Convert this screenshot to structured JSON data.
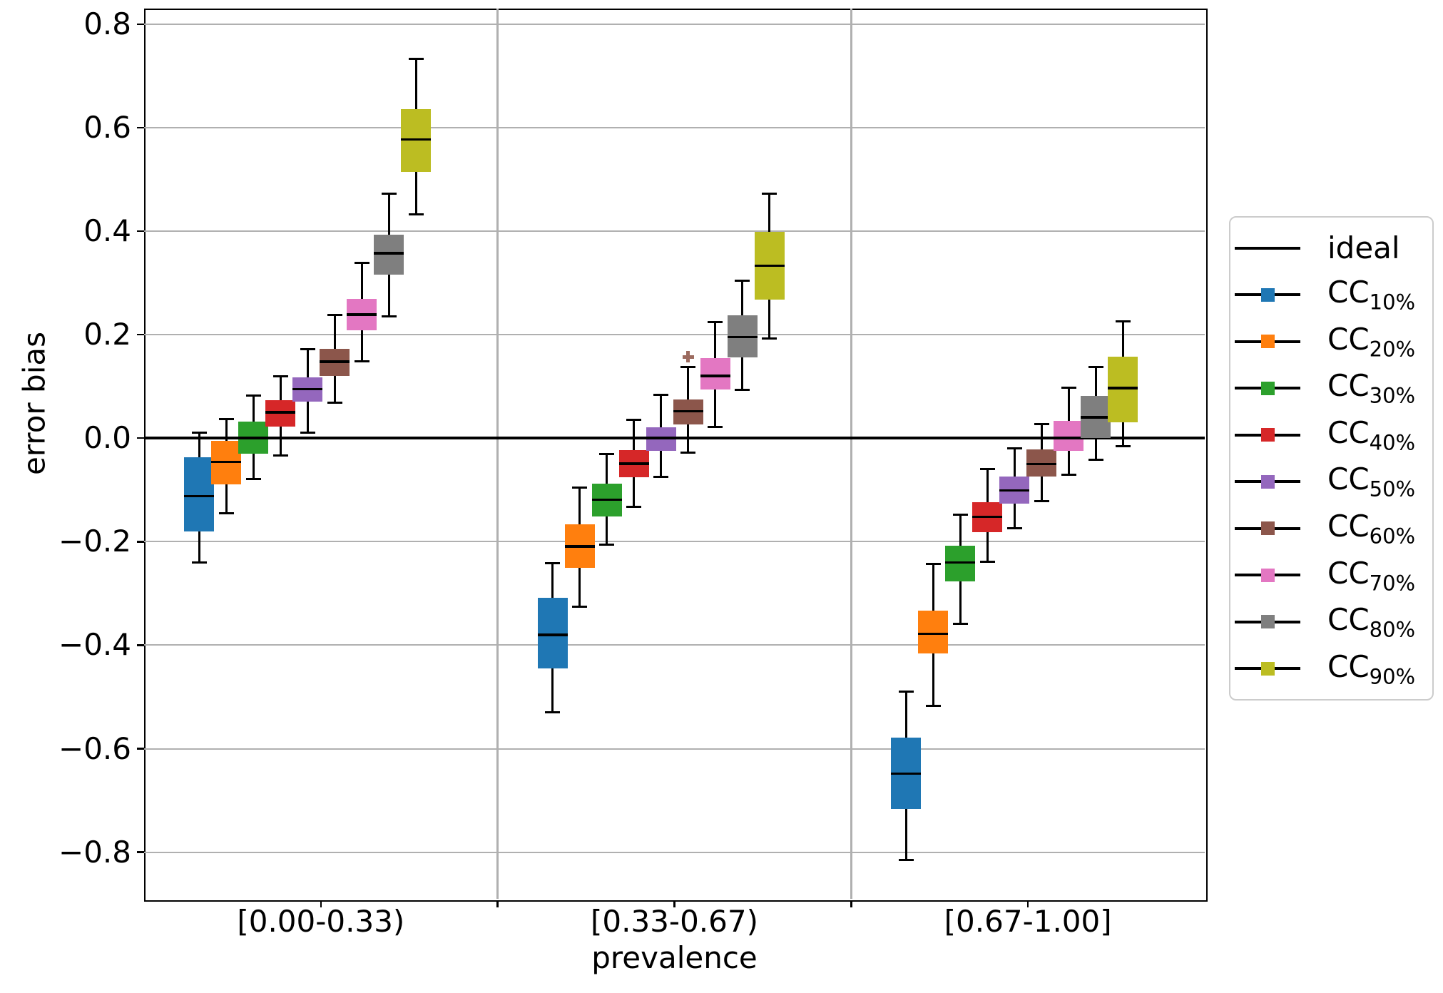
{
  "y_axis": {
    "label": "error bias"
  },
  "x_axis": {
    "label": "prevalence"
  },
  "chart_data": {
    "type": "boxplot",
    "title": "",
    "xlabel": "prevalence",
    "ylabel": "error bias",
    "ylim": [
      -0.89,
      0.83
    ],
    "yticks": [
      0.8,
      0.6,
      0.4,
      0.2,
      0.0,
      -0.2,
      -0.4,
      -0.6,
      -0.8
    ],
    "ytick_labels": [
      "0.8",
      "0.6",
      "0.4",
      "0.2",
      "0.0",
      "−0.2",
      "−0.4",
      "−0.6",
      "−0.8"
    ],
    "grid": true,
    "legend_position": "right",
    "gridline_color": "#b0b0b0",
    "reference_line": {
      "label": "ideal",
      "y": 0.0,
      "color": "#000000"
    },
    "groups": [
      "[0.00-0.33)",
      "[0.33-0.67)",
      "[0.67-1.00]"
    ],
    "flier_color": "#9c6b5f",
    "series": [
      {
        "name": "CC",
        "sub": "10%",
        "color": "#1f77b4",
        "boxes": [
          {
            "whislo": -0.24,
            "q1": -0.18,
            "med": -0.112,
            "q3": -0.037,
            "whishi": 0.01,
            "fliers": []
          },
          {
            "whislo": -0.529,
            "q1": -0.445,
            "med": -0.38,
            "q3": -0.309,
            "whishi": -0.241,
            "fliers": []
          },
          {
            "whislo": -0.815,
            "q1": -0.716,
            "med": -0.648,
            "q3": -0.578,
            "whishi": -0.49,
            "fliers": []
          }
        ]
      },
      {
        "name": "CC",
        "sub": "20%",
        "color": "#ff7f0e",
        "boxes": [
          {
            "whislo": -0.145,
            "q1": -0.089,
            "med": -0.046,
            "q3": -0.005,
            "whishi": 0.037,
            "fliers": []
          },
          {
            "whislo": -0.325,
            "q1": -0.25,
            "med": -0.209,
            "q3": -0.167,
            "whishi": -0.096,
            "fliers": []
          },
          {
            "whislo": -0.517,
            "q1": -0.416,
            "med": -0.378,
            "q3": -0.333,
            "whishi": -0.243,
            "fliers": []
          }
        ]
      },
      {
        "name": "CC",
        "sub": "30%",
        "color": "#2ca02c",
        "boxes": [
          {
            "whislo": -0.079,
            "q1": -0.03,
            "med": 0.0,
            "q3": 0.032,
            "whishi": 0.082,
            "fliers": []
          },
          {
            "whislo": -0.206,
            "q1": -0.151,
            "med": -0.119,
            "q3": -0.088,
            "whishi": -0.031,
            "fliers": []
          },
          {
            "whislo": -0.359,
            "q1": -0.277,
            "med": -0.24,
            "q3": -0.208,
            "whishi": -0.148,
            "fliers": []
          }
        ]
      },
      {
        "name": "CC",
        "sub": "40%",
        "color": "#d62728",
        "boxes": [
          {
            "whislo": -0.034,
            "q1": 0.023,
            "med": 0.05,
            "q3": 0.074,
            "whishi": 0.12,
            "fliers": []
          },
          {
            "whislo": -0.132,
            "q1": -0.075,
            "med": -0.049,
            "q3": -0.023,
            "whishi": 0.035,
            "fliers": []
          },
          {
            "whislo": -0.239,
            "q1": -0.181,
            "med": -0.152,
            "q3": -0.124,
            "whishi": -0.059,
            "fliers": []
          }
        ]
      },
      {
        "name": "CC",
        "sub": "50%",
        "color": "#9467bd",
        "boxes": [
          {
            "whislo": 0.011,
            "q1": 0.07,
            "med": 0.095,
            "q3": 0.117,
            "whishi": 0.172,
            "fliers": []
          },
          {
            "whislo": -0.075,
            "q1": -0.024,
            "med": 0.0,
            "q3": 0.021,
            "whishi": 0.084,
            "fliers": []
          },
          {
            "whislo": -0.174,
            "q1": -0.127,
            "med": -0.101,
            "q3": -0.074,
            "whishi": -0.02,
            "fliers": []
          }
        ]
      },
      {
        "name": "CC",
        "sub": "60%",
        "color": "#8c564b",
        "boxes": [
          {
            "whislo": 0.069,
            "q1": 0.12,
            "med": 0.148,
            "q3": 0.173,
            "whishi": 0.238,
            "fliers": []
          },
          {
            "whislo": -0.028,
            "q1": 0.027,
            "med": 0.052,
            "q3": 0.075,
            "whishi": 0.138,
            "fliers": [
              0.157
            ]
          },
          {
            "whislo": -0.122,
            "q1": -0.074,
            "med": -0.05,
            "q3": -0.022,
            "whishi": 0.027,
            "fliers": []
          }
        ]
      },
      {
        "name": "CC",
        "sub": "70%",
        "color": "#e377c2",
        "boxes": [
          {
            "whislo": 0.149,
            "q1": 0.209,
            "med": 0.239,
            "q3": 0.269,
            "whishi": 0.338,
            "fliers": []
          },
          {
            "whislo": 0.021,
            "q1": 0.094,
            "med": 0.12,
            "q3": 0.154,
            "whishi": 0.224,
            "fliers": []
          },
          {
            "whislo": -0.071,
            "q1": -0.024,
            "med": 0.0,
            "q3": 0.034,
            "whishi": 0.097,
            "fliers": []
          }
        ]
      },
      {
        "name": "CC",
        "sub": "80%",
        "color": "#7f7f7f",
        "boxes": [
          {
            "whislo": 0.235,
            "q1": 0.316,
            "med": 0.357,
            "q3": 0.393,
            "whishi": 0.473,
            "fliers": []
          },
          {
            "whislo": 0.094,
            "q1": 0.156,
            "med": 0.195,
            "q3": 0.238,
            "whishi": 0.304,
            "fliers": []
          },
          {
            "whislo": -0.042,
            "q1": 0.0,
            "med": 0.04,
            "q3": 0.082,
            "whishi": 0.137,
            "fliers": []
          }
        ]
      },
      {
        "name": "CC",
        "sub": "90%",
        "color": "#bcbd22",
        "boxes": [
          {
            "whislo": 0.432,
            "q1": 0.514,
            "med": 0.577,
            "q3": 0.635,
            "whishi": 0.733,
            "fliers": []
          },
          {
            "whislo": 0.192,
            "q1": 0.268,
            "med": 0.333,
            "q3": 0.398,
            "whishi": 0.473,
            "fliers": []
          },
          {
            "whislo": -0.015,
            "q1": 0.03,
            "med": 0.097,
            "q3": 0.158,
            "whishi": 0.226,
            "fliers": []
          }
        ]
      }
    ]
  }
}
